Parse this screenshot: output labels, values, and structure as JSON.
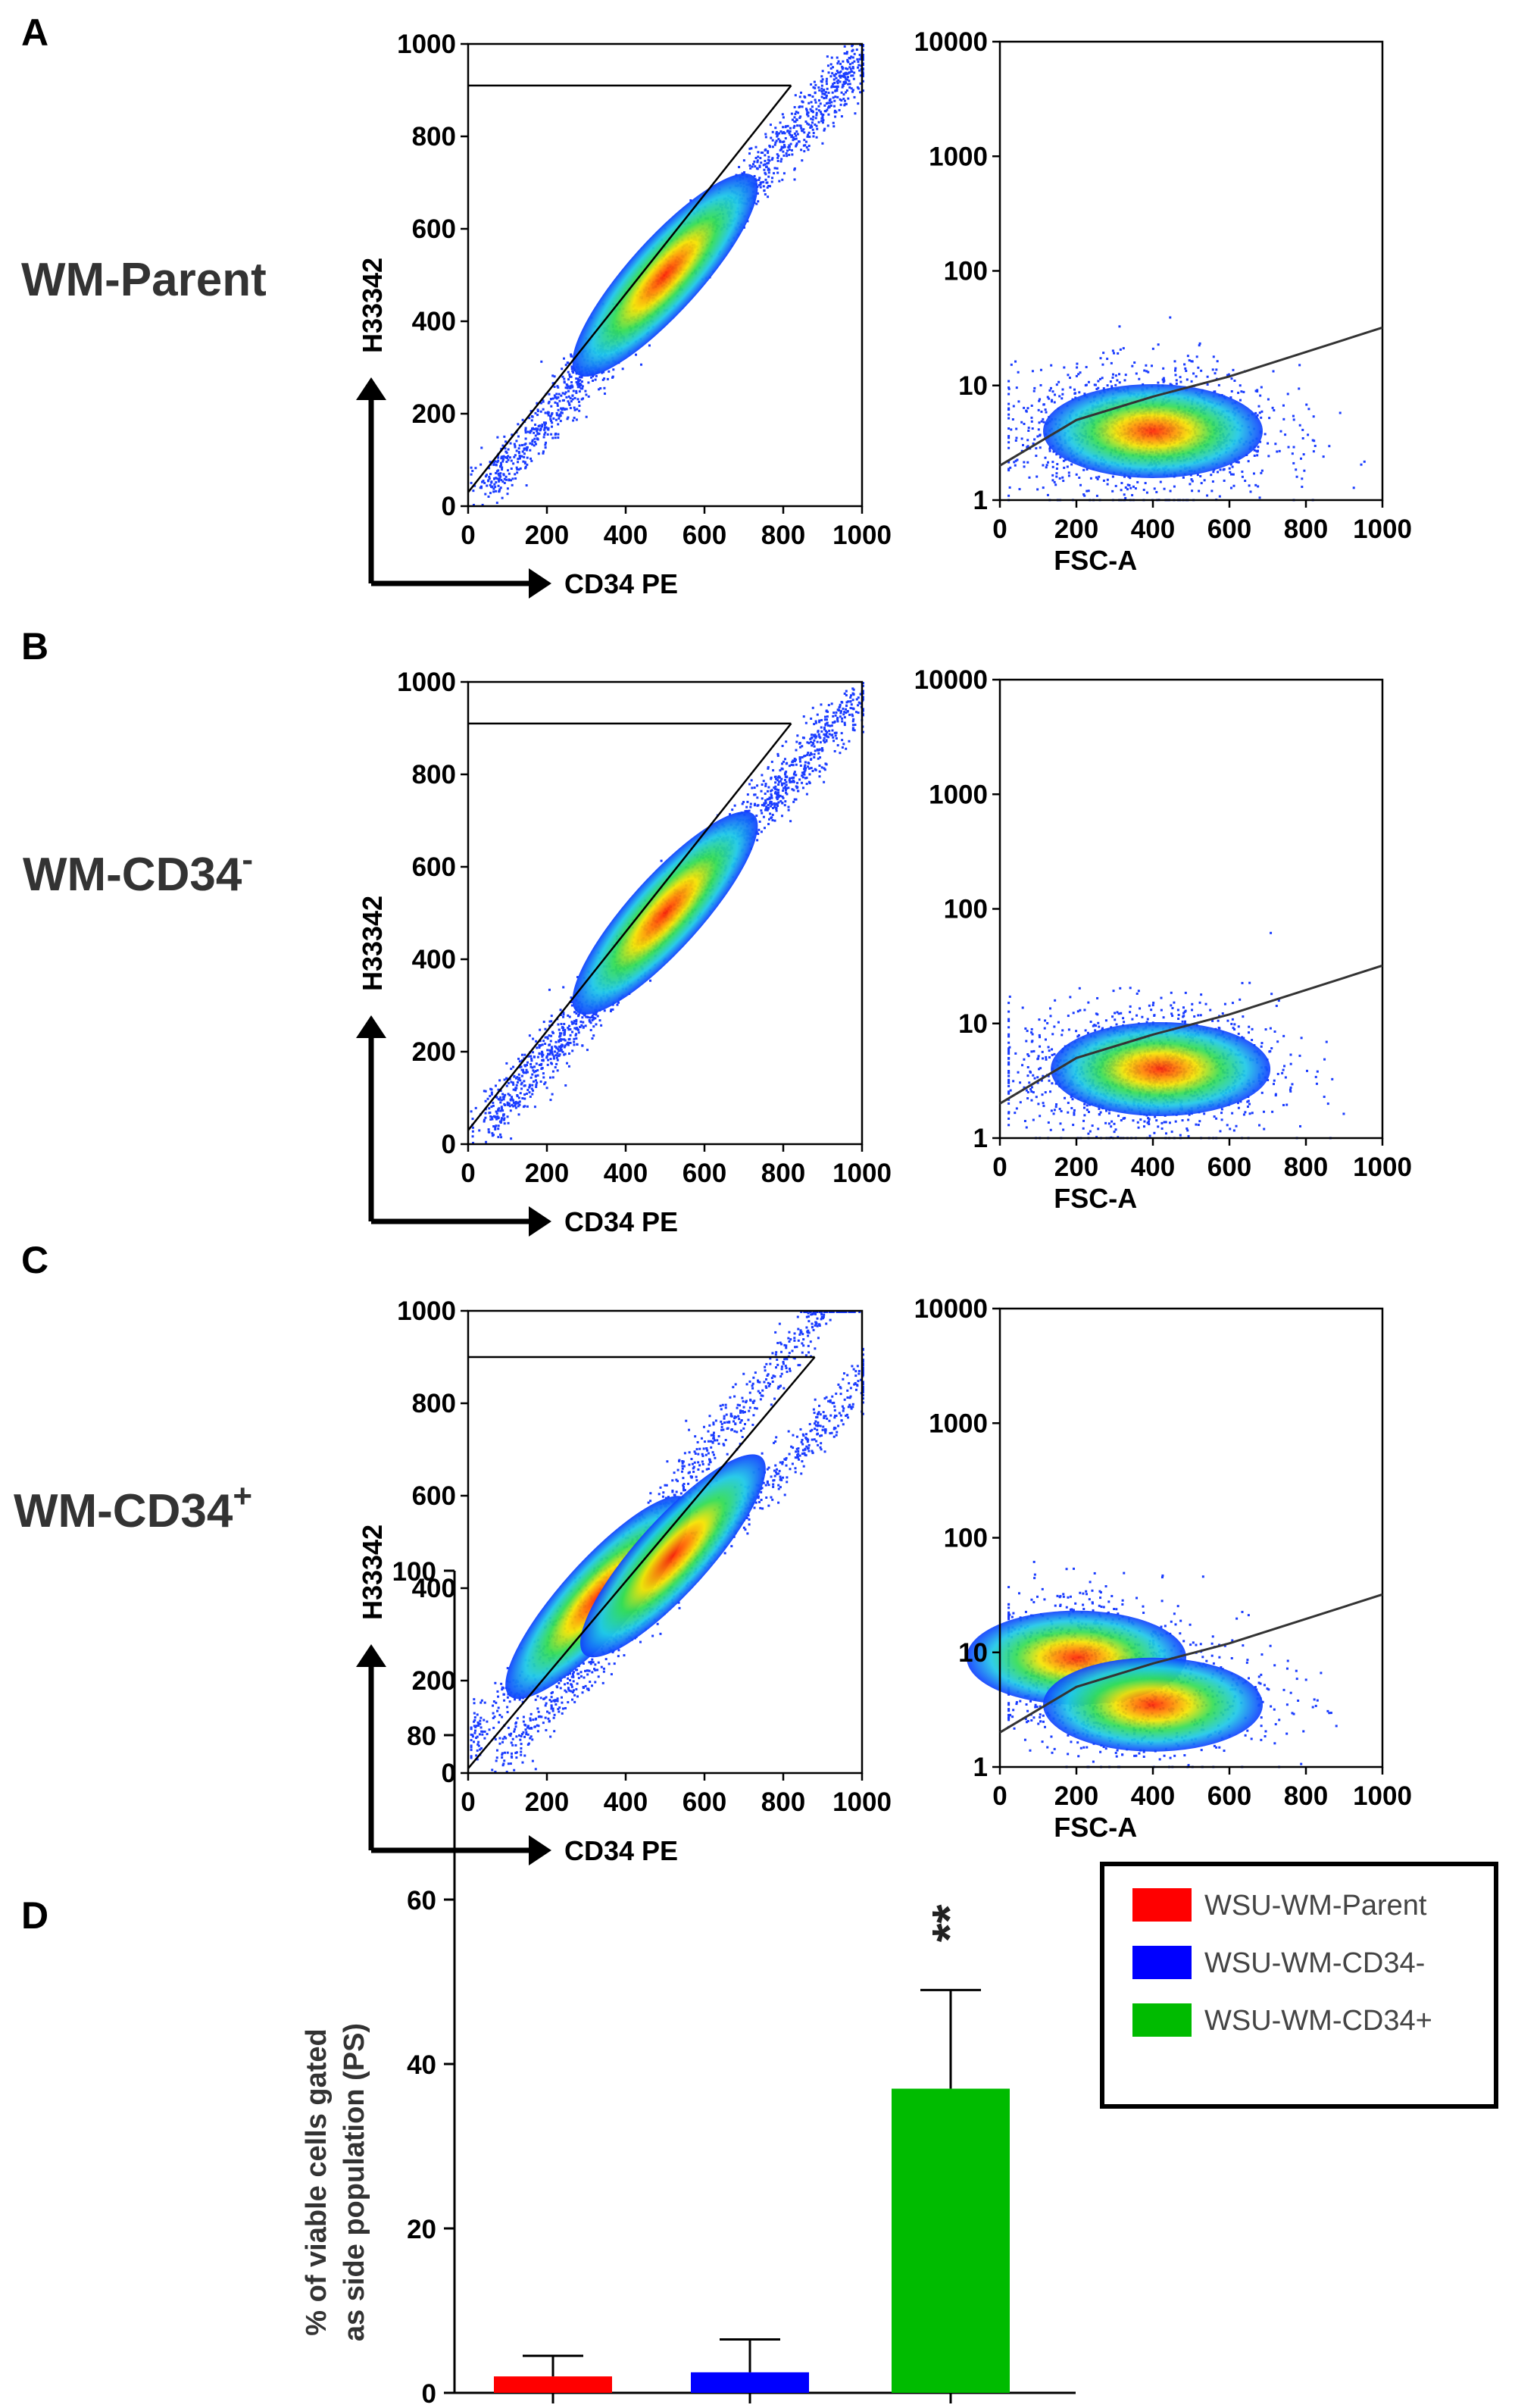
{
  "panels": [
    {
      "letter": "A",
      "sample_label": "WM-Parent",
      "sample_sup": "",
      "scatter1": {
        "xlabel": "CD34 PE",
        "ylabel": "H33342",
        "xticks": [
          "0",
          "200",
          "400",
          "600",
          "800",
          "1000"
        ],
        "yticks": [
          "0",
          "200",
          "400",
          "600",
          "800",
          "1000"
        ]
      },
      "scatter2": {
        "xlabel": "FSC-A",
        "xticks": [
          "0",
          "200",
          "400",
          "600",
          "800",
          "1000"
        ],
        "yticks": [
          "1",
          "10",
          "100",
          "1000",
          "10000"
        ]
      }
    },
    {
      "letter": "B",
      "sample_label": "WM-CD34",
      "sample_sup": "-",
      "scatter1": {
        "xlabel": "CD34 PE",
        "ylabel": "H33342",
        "xticks": [
          "0",
          "200",
          "400",
          "600",
          "800",
          "1000"
        ],
        "yticks": [
          "0",
          "200",
          "400",
          "600",
          "800",
          "1000"
        ]
      },
      "scatter2": {
        "xlabel": "FSC-A",
        "xticks": [
          "0",
          "200",
          "400",
          "600",
          "800",
          "1000"
        ],
        "yticks": [
          "1",
          "10",
          "100",
          "1000",
          "10000"
        ]
      }
    },
    {
      "letter": "C",
      "sample_label": "WM-CD34",
      "sample_sup": "+",
      "scatter1": {
        "xlabel": "CD34 PE",
        "ylabel": "H33342",
        "xticks": [
          "0",
          "200",
          "400",
          "600",
          "800",
          "1000"
        ],
        "yticks": [
          "0",
          "200",
          "400",
          "600",
          "800",
          "1000"
        ]
      },
      "scatter2": {
        "xlabel": "FSC-A",
        "xticks": [
          "0",
          "200",
          "400",
          "600",
          "800",
          "1000"
        ],
        "yticks": [
          "1",
          "10",
          "100",
          "1000",
          "10000"
        ]
      }
    }
  ],
  "chart_data": [
    {
      "type": "scatter",
      "panel": "A",
      "xlabel": "CD34 PE",
      "ylabel": "H33342",
      "xlim": [
        0,
        1000
      ],
      "ylim": [
        0,
        1000
      ],
      "density_peaks": [
        {
          "x": 500,
          "y": 500
        }
      ],
      "gate_line": {
        "x": [
          0,
          820
        ],
        "y": [
          30,
          910
        ]
      },
      "gate_top_y": 910
    },
    {
      "type": "scatter",
      "panel": "A",
      "xlabel": "FSC-A",
      "ylabel": "",
      "xlim": [
        0,
        1000
      ],
      "ylim": [
        1,
        10000
      ],
      "yscale": "log",
      "density_peaks": [
        {
          "x": 400,
          "y": 4
        }
      ],
      "gate_curve": {
        "x": [
          0,
          200,
          400,
          600,
          1000
        ],
        "y": [
          2,
          5,
          8,
          12,
          32
        ]
      }
    },
    {
      "type": "scatter",
      "panel": "B",
      "xlabel": "CD34 PE",
      "ylabel": "H33342",
      "xlim": [
        0,
        1000
      ],
      "ylim": [
        0,
        1000
      ],
      "density_peaks": [
        {
          "x": 500,
          "y": 500
        }
      ],
      "gate_line": {
        "x": [
          0,
          820
        ],
        "y": [
          30,
          910
        ]
      },
      "gate_top_y": 910
    },
    {
      "type": "scatter",
      "panel": "B",
      "xlabel": "FSC-A",
      "ylabel": "",
      "xlim": [
        0,
        1000
      ],
      "ylim": [
        1,
        10000
      ],
      "yscale": "log",
      "density_peaks": [
        {
          "x": 420,
          "y": 4
        }
      ],
      "gate_curve": {
        "x": [
          0,
          200,
          400,
          600,
          1000
        ],
        "y": [
          2,
          5,
          8,
          12,
          32
        ]
      }
    },
    {
      "type": "scatter",
      "panel": "C",
      "xlabel": "CD34 PE",
      "ylabel": "H33342",
      "xlim": [
        0,
        1000
      ],
      "ylim": [
        0,
        1000
      ],
      "density_peaks": [
        {
          "x": 330,
          "y": 380
        },
        {
          "x": 520,
          "y": 470
        }
      ],
      "gate_line": {
        "x": [
          0,
          880
        ],
        "y": [
          10,
          900
        ]
      },
      "gate_top_y": 900
    },
    {
      "type": "scatter",
      "panel": "C",
      "xlabel": "FSC-A",
      "ylabel": "",
      "xlim": [
        0,
        1000
      ],
      "ylim": [
        1,
        10000
      ],
      "yscale": "log",
      "density_peaks": [
        {
          "x": 200,
          "y": 9
        },
        {
          "x": 400,
          "y": 3.5
        }
      ],
      "gate_curve": {
        "x": [
          0,
          200,
          400,
          600,
          1000
        ],
        "y": [
          2,
          5,
          8,
          12,
          32
        ]
      }
    },
    {
      "type": "bar",
      "panel": "D",
      "ylabel": "% of viable cells gated\nas side population (PS)",
      "ylim": [
        0,
        100
      ],
      "yticks": [
        "0",
        "20",
        "40",
        "60",
        "80",
        "100"
      ],
      "categories": [
        "WSU-WM-Parent",
        "WSU-WM-CD34-",
        "WSU-WM-CD34+"
      ],
      "values": [
        2,
        2.5,
        37
      ],
      "errors": [
        2.5,
        4,
        12
      ],
      "colors": [
        "#ff0000",
        "#0000ff",
        "#00bb00"
      ],
      "annotation": "**",
      "legend_position": "top-right"
    }
  ]
}
